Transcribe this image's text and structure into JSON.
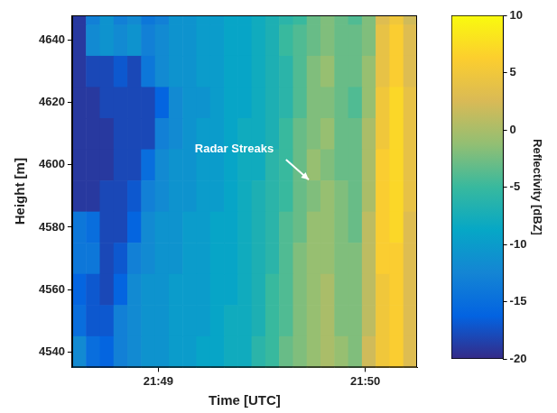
{
  "chart_data": {
    "type": "heatmap",
    "x_label": "Time [UTC]",
    "y_label": "Height [m]",
    "xlim": [
      35,
      135
    ],
    "ylim": [
      4535,
      4648
    ],
    "xticks": [
      {
        "value": 60,
        "label": "21:49"
      },
      {
        "value": 120,
        "label": "21:50"
      }
    ],
    "yticks": [
      4540,
      4560,
      4580,
      4600,
      4620,
      4640
    ],
    "grid": false,
    "x_edges": [
      35,
      39,
      43,
      47,
      51,
      55,
      59,
      63,
      67,
      71,
      75,
      79,
      83,
      87,
      91,
      95,
      99,
      103,
      107,
      111,
      115,
      119,
      123,
      127,
      131,
      135
    ],
    "y_edges": [
      4648,
      4645,
      4635,
      4625,
      4615,
      4605,
      4595,
      4585,
      4575,
      4565,
      4555,
      4545,
      4535
    ],
    "z": [
      [
        -19,
        -13,
        -11,
        -13,
        -12,
        -14,
        -13,
        -11,
        -11,
        -10,
        -10,
        -9,
        -9,
        -8,
        -7,
        -6,
        -5,
        -3,
        -2,
        -3,
        -4,
        -2,
        3,
        5,
        2
      ],
      [
        -19,
        -12,
        -11,
        -12,
        -11,
        -13,
        -12,
        -11,
        -11,
        -10,
        -10,
        -9,
        -9,
        -8,
        -7,
        -5,
        -4,
        -3,
        -2,
        -3,
        -3,
        -2,
        4,
        6,
        3
      ],
      [
        -19,
        -18,
        -18,
        -17,
        -18,
        -14,
        -12,
        -11,
        -11,
        -10,
        -10,
        -9,
        -9,
        -8,
        -7,
        -6,
        -4,
        -2,
        -1,
        -3,
        -3,
        -1,
        4,
        6,
        3
      ],
      [
        -19,
        -19,
        -18,
        -18,
        -18,
        -18,
        -16,
        -12,
        -11,
        -11,
        -10,
        -9,
        -9,
        -8,
        -7,
        -6,
        -4,
        -2,
        -2,
        -3,
        -4,
        -1,
        5,
        7,
        4
      ],
      [
        -19,
        -19,
        -19,
        -18,
        -18,
        -18,
        -13,
        -12,
        -11,
        -10,
        -10,
        -9,
        -8,
        -8,
        -7,
        -5,
        -3,
        -2,
        -1,
        -3,
        -3,
        0,
        5,
        7,
        4
      ],
      [
        -19,
        -19,
        -19,
        -18,
        -18,
        -15,
        -12,
        -11,
        -11,
        -10,
        -10,
        -9,
        -8,
        -8,
        -6,
        -5,
        -3,
        -1,
        -2,
        -3,
        -3,
        0,
        6,
        7,
        4
      ],
      [
        -19,
        -19,
        -18,
        -18,
        -17,
        -13,
        -12,
        -11,
        -11,
        -10,
        -10,
        -9,
        -8,
        -7,
        -6,
        -5,
        -3,
        -2,
        -1,
        -2,
        -3,
        0,
        6,
        7,
        4
      ],
      [
        -14,
        -15,
        -18,
        -18,
        -16,
        -12,
        -11,
        -11,
        -10,
        -10,
        -9,
        -9,
        -8,
        -7,
        -6,
        -4,
        -3,
        -1,
        -1,
        -2,
        -3,
        1,
        6,
        7,
        3
      ],
      [
        -14,
        -14,
        -18,
        -17,
        -13,
        -12,
        -11,
        -11,
        -10,
        -10,
        -9,
        -9,
        -8,
        -7,
        -6,
        -4,
        -2,
        -1,
        -1,
        -2,
        -2,
        1,
        6,
        6,
        3
      ],
      [
        -16,
        -17,
        -18,
        -16,
        -12,
        -11,
        -11,
        -10,
        -10,
        -10,
        -9,
        -9,
        -8,
        -7,
        -5,
        -4,
        -2,
        -1,
        0,
        -2,
        -2,
        1,
        5,
        6,
        3
      ],
      [
        -15,
        -17,
        -17,
        -13,
        -12,
        -11,
        -11,
        -10,
        -10,
        -10,
        -9,
        -8,
        -8,
        -7,
        -5,
        -4,
        -2,
        -1,
        0,
        -2,
        -2,
        1,
        5,
        6,
        3
      ],
      [
        -12,
        -15,
        -16,
        -13,
        -12,
        -11,
        -11,
        -10,
        -10,
        -9,
        -9,
        -8,
        -8,
        -6,
        -5,
        -3,
        -2,
        -1,
        0,
        -1,
        -2,
        2,
        5,
        6,
        3
      ]
    ],
    "colorbar": {
      "label": "Reflectivity [dBZ]",
      "range": [
        -20,
        10
      ],
      "ticks": [
        -20,
        -15,
        -10,
        -5,
        0,
        5,
        10
      ]
    },
    "annotations": [
      "Radar Streaks"
    ]
  }
}
